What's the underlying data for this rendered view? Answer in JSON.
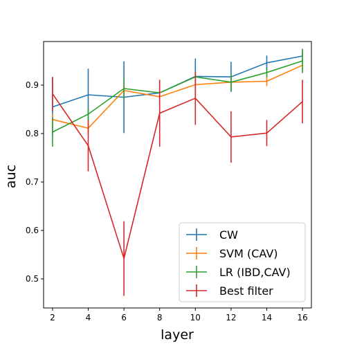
{
  "chart_data": {
    "type": "line",
    "xlabel": "layer",
    "ylabel": "auc",
    "x": [
      2,
      4,
      6,
      8,
      10,
      12,
      14,
      16
    ],
    "xticks": [
      2,
      4,
      6,
      8,
      10,
      12,
      14,
      16
    ],
    "yticks": [
      0.5,
      0.6,
      0.7,
      0.8,
      0.9
    ],
    "xlim": [
      1.5,
      16.5
    ],
    "ylim": [
      0.44,
      0.99
    ],
    "legend_position": "bottom-right",
    "grid": false,
    "error_bars": true,
    "series": [
      {
        "name": "CW",
        "color": "#1f77b4",
        "values": [
          0.855,
          0.88,
          0.875,
          0.884,
          0.918,
          0.917,
          0.946,
          0.96
        ],
        "errors": [
          0.06,
          0.054,
          0.074,
          0.025,
          0.037,
          0.031,
          0.015,
          0.01
        ]
      },
      {
        "name": "SVM (CAV)",
        "color": "#ff7f0e",
        "values": [
          0.829,
          0.811,
          0.889,
          0.876,
          0.901,
          0.906,
          0.908,
          0.941
        ],
        "errors": [
          0.012,
          0.012,
          0.012,
          0.012,
          0.012,
          0.012,
          0.01,
          0.012
        ]
      },
      {
        "name": "LR (IBD,CAV)",
        "color": "#2ca02c",
        "values": [
          0.803,
          0.84,
          0.893,
          0.884,
          0.917,
          0.906,
          0.926,
          0.95
        ],
        "errors": [
          0.03,
          0.012,
          0.022,
          0.01,
          0.008,
          0.018,
          0.01,
          0.025
        ]
      },
      {
        "name": "Best filter",
        "color": "#d62728",
        "values": [
          0.882,
          0.775,
          0.542,
          0.842,
          0.873,
          0.793,
          0.801,
          0.866
        ],
        "errors": [
          0.035,
          0.053,
          0.077,
          0.069,
          0.055,
          0.053,
          0.027,
          0.045
        ]
      }
    ]
  }
}
